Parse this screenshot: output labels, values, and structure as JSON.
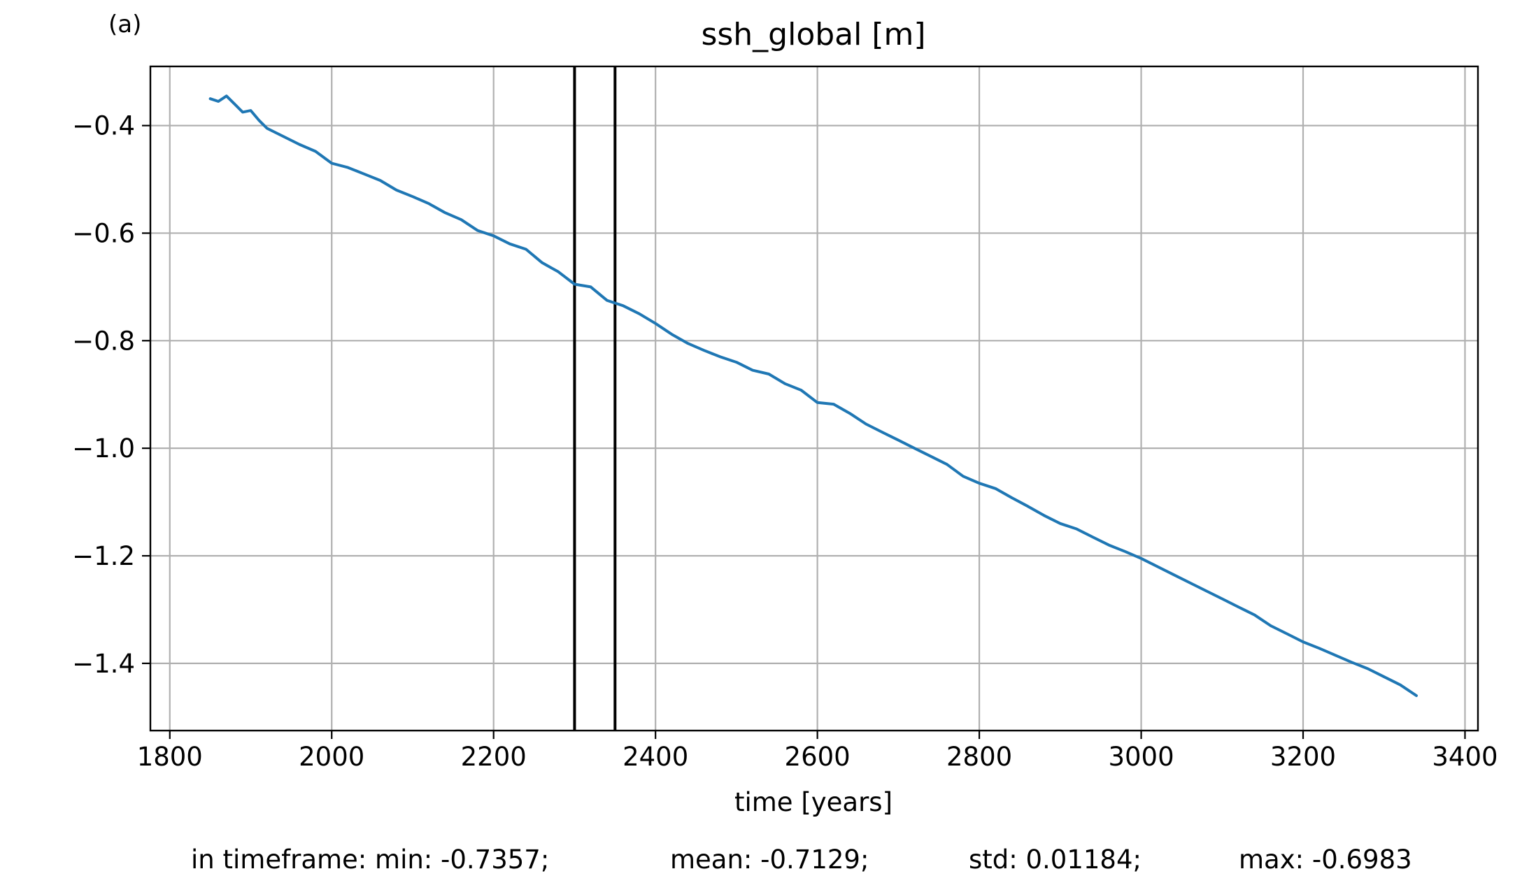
{
  "panel_label": "(a)",
  "stats": {
    "min": "in timeframe: min: -0.7357;",
    "mean": "mean: -0.7129;",
    "std": "std: 0.01184;",
    "max": "max: -0.6983"
  },
  "colors": {
    "series": "#1f77b4",
    "grid": "#b0b0b0",
    "vline": "#000000"
  },
  "chart_data": {
    "type": "line",
    "title": "ssh_global [m]",
    "xlabel": "time [years]",
    "ylabel": "",
    "xlim": [
      1776,
      3416
    ],
    "ylim": [
      -1.525,
      -0.29
    ],
    "xticks": [
      1800,
      2000,
      2200,
      2400,
      2600,
      2800,
      3000,
      3200,
      3400
    ],
    "xtick_labels": [
      "1800",
      "2000",
      "2200",
      "2400",
      "2600",
      "2800",
      "3000",
      "3200",
      "3400"
    ],
    "yticks": [
      -0.4,
      -0.6,
      -0.8,
      -1.0,
      -1.2,
      -1.4
    ],
    "ytick_labels": [
      "−0.4",
      "−0.6",
      "−0.8",
      "−1.0",
      "−1.2",
      "−1.4"
    ],
    "grid": true,
    "vlines": [
      2300,
      2350
    ],
    "series": [
      {
        "x": [
          1850,
          1860,
          1870,
          1880,
          1890,
          1900,
          1910,
          1920,
          1940,
          1960,
          1980,
          2000,
          2020,
          2040,
          2060,
          2080,
          2100,
          2120,
          2140,
          2160,
          2180,
          2200,
          2220,
          2240,
          2260,
          2280,
          2300,
          2320,
          2340,
          2360,
          2380,
          2400,
          2420,
          2440,
          2460,
          2480,
          2500,
          2520,
          2540,
          2560,
          2580,
          2600,
          2620,
          2640,
          2660,
          2680,
          2700,
          2720,
          2740,
          2760,
          2780,
          2800,
          2820,
          2840,
          2860,
          2880,
          2900,
          2920,
          2940,
          2960,
          2980,
          3000,
          3020,
          3040,
          3060,
          3080,
          3100,
          3120,
          3140,
          3160,
          3180,
          3200,
          3220,
          3240,
          3260,
          3280,
          3300,
          3320,
          3340
        ],
        "y": [
          -0.35,
          -0.355,
          -0.345,
          -0.36,
          -0.375,
          -0.372,
          -0.39,
          -0.405,
          -0.42,
          -0.435,
          -0.448,
          -0.47,
          -0.478,
          -0.49,
          -0.502,
          -0.52,
          -0.532,
          -0.545,
          -0.562,
          -0.575,
          -0.595,
          -0.605,
          -0.62,
          -0.63,
          -0.655,
          -0.672,
          -0.695,
          -0.7,
          -0.725,
          -0.735,
          -0.75,
          -0.768,
          -0.788,
          -0.805,
          -0.818,
          -0.83,
          -0.84,
          -0.855,
          -0.862,
          -0.88,
          -0.892,
          -0.915,
          -0.918,
          -0.935,
          -0.955,
          -0.97,
          -0.985,
          -1.0,
          -1.015,
          -1.03,
          -1.052,
          -1.065,
          -1.075,
          -1.092,
          -1.108,
          -1.125,
          -1.14,
          -1.15,
          -1.165,
          -1.18,
          -1.192,
          -1.205,
          -1.22,
          -1.235,
          -1.25,
          -1.265,
          -1.28,
          -1.295,
          -1.31,
          -1.33,
          -1.345,
          -1.36,
          -1.372,
          -1.385,
          -1.398,
          -1.41,
          -1.425,
          -1.44,
          -1.46
        ]
      }
    ]
  }
}
